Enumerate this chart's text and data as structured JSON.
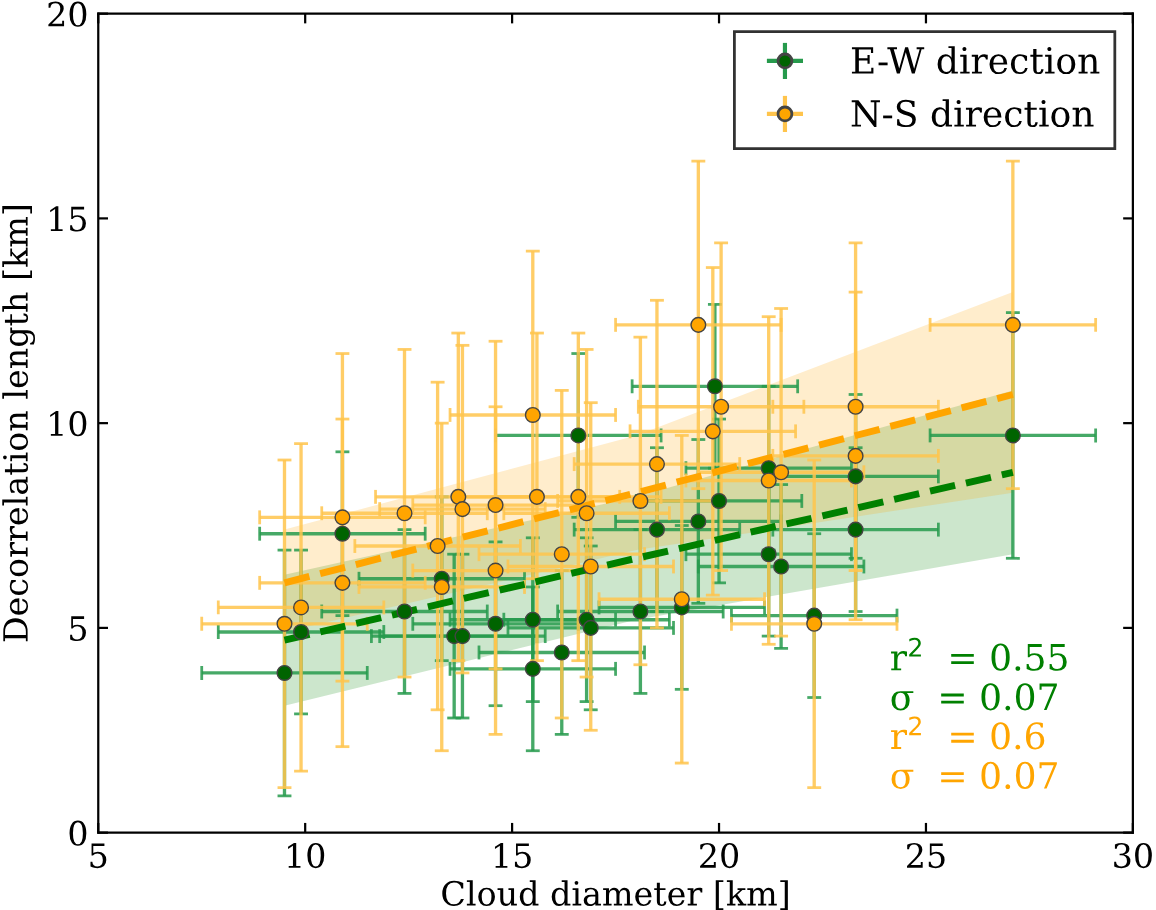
{
  "chart_data": {
    "type": "scatter",
    "xlabel": "Cloud diameter [km]",
    "ylabel": "Decorrelation length [km]",
    "xlim": [
      5,
      30
    ],
    "ylim": [
      0,
      20
    ],
    "xticks": [
      5,
      10,
      15,
      20,
      25,
      30
    ],
    "yticks": [
      0,
      5,
      10,
      15,
      20
    ],
    "grid": false,
    "legend": "top right",
    "marker": "circle",
    "series": [
      {
        "name": "E-W direction",
        "color": "#006400",
        "x": [
          9.5,
          9.9,
          10.9,
          12.4,
          13.3,
          13.6,
          13.8,
          14.6,
          15.5,
          15.5,
          16.2,
          16.6,
          16.8,
          16.9,
          18.1,
          18.5,
          19.1,
          19.5,
          19.9,
          20.0,
          21.2,
          21.2,
          21.5,
          22.3,
          23.3,
          23.3,
          27.1
        ],
        "values": [
          3.9,
          4.9,
          7.3,
          5.4,
          6.2,
          4.8,
          4.8,
          5.1,
          5.2,
          4.0,
          4.4,
          9.7,
          5.2,
          5.0,
          5.4,
          7.4,
          5.5,
          7.6,
          10.9,
          8.1,
          8.9,
          6.8,
          6.5,
          5.3,
          8.7,
          7.4,
          9.7
        ],
        "errors": [
          3,
          2,
          2,
          2,
          2,
          2,
          2,
          2,
          2,
          2,
          2,
          2,
          2,
          2,
          2,
          2,
          2,
          2,
          2,
          2,
          2,
          2,
          2,
          2,
          2,
          2,
          3
        ],
        "xerrors": [
          2,
          2,
          2,
          2,
          2,
          2,
          2,
          2,
          2,
          2,
          2,
          2,
          2,
          2,
          2,
          2,
          2,
          2,
          2,
          2,
          2,
          2,
          2,
          2,
          2,
          2,
          2
        ]
      },
      {
        "name": "N-S direction",
        "color": "#ffa500",
        "x": [
          9.5,
          9.9,
          10.9,
          10.9,
          12.4,
          13.2,
          13.3,
          13.7,
          13.8,
          14.6,
          14.6,
          15.5,
          15.6,
          16.2,
          16.6,
          16.8,
          16.9,
          18.1,
          18.5,
          19.1,
          19.5,
          20.05,
          19.85,
          21.2,
          21.5,
          22.3,
          23.3,
          23.3,
          27.1
        ],
        "values": [
          5.1,
          5.5,
          7.7,
          6.1,
          7.8,
          7.0,
          6.0,
          8.2,
          7.9,
          8.0,
          6.4,
          10.2,
          8.2,
          6.8,
          8.2,
          7.8,
          6.5,
          8.1,
          9.0,
          5.7,
          12.4,
          10.4,
          9.8,
          8.6,
          8.8,
          5.1,
          10.4,
          9.2,
          12.4
        ],
        "errors": [
          4,
          4,
          4,
          4,
          4,
          4,
          4,
          4,
          4,
          4,
          4,
          4,
          4,
          4,
          4,
          4,
          4,
          4,
          4,
          4,
          4,
          4,
          4,
          4,
          4,
          4,
          4,
          4,
          4
        ],
        "xerrors": [
          2,
          2,
          2,
          2,
          2,
          2,
          2,
          2,
          2,
          2,
          2,
          2,
          2,
          2,
          2,
          2,
          2,
          2,
          2,
          2,
          2,
          2,
          2,
          2,
          2,
          2,
          2,
          2,
          2
        ]
      },
      {
        "type": "line",
        "color": "#008000",
        "line_style": "dashed",
        "marker": "none",
        "x": [
          9.5,
          18,
          27.1
        ],
        "values": [
          4.7,
          6.7,
          8.8
        ],
        "lower": [
          3.1,
          5.2,
          6.8
        ],
        "upper": [
          6.3,
          8.2,
          10.8
        ]
      },
      {
        "type": "line",
        "color": "#ffa500",
        "line_style": "dashed",
        "marker": "none",
        "x": [
          9.5,
          18,
          27.1
        ],
        "values": [
          6.1,
          8.3,
          10.7
        ],
        "lower": [
          4.9,
          6.9,
          8.3
        ],
        "upper": [
          7.4,
          9.7,
          13.2
        ]
      }
    ],
    "annotations": [
      "r$^{2}$  = 0.55",
      "σ  = 0.07",
      "r$^{2}$  = 0.6",
      "σ  = 0.07"
    ]
  }
}
